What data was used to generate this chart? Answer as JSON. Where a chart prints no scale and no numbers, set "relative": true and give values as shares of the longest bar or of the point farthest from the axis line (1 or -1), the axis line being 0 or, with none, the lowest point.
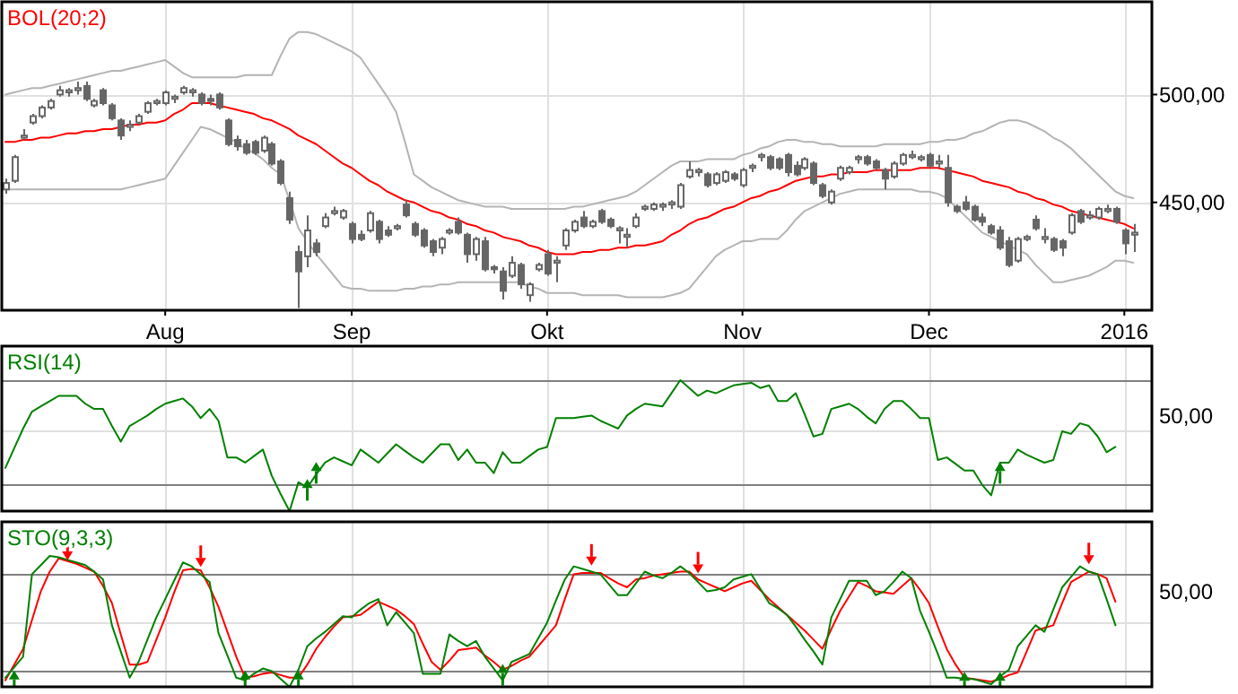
{
  "chart_data": [
    {
      "type": "candlestick",
      "title": "BOL(20;2)",
      "categories": [
        null,
        null,
        null,
        null,
        null,
        null,
        null,
        null,
        null,
        null,
        null,
        null,
        null,
        null,
        null,
        null,
        null,
        null,
        "Aug",
        null,
        null,
        null,
        null,
        null,
        null,
        null,
        null,
        null,
        null,
        null,
        null,
        null,
        null,
        null,
        null,
        null,
        null,
        null,
        null,
        "Sep",
        null,
        null,
        null,
        null,
        null,
        null,
        null,
        null,
        null,
        null,
        null,
        null,
        null,
        null,
        null,
        null,
        null,
        null,
        null,
        null,
        null,
        "Okt",
        null,
        null,
        null,
        null,
        null,
        null,
        null,
        null,
        null,
        null,
        null,
        null,
        null,
        null,
        null,
        null,
        null,
        null,
        null,
        null,
        null,
        "Nov",
        null,
        null,
        null,
        null,
        null,
        null,
        null,
        null,
        null,
        null,
        null,
        null,
        null,
        null,
        null,
        null,
        null,
        null,
        null,
        null,
        "Dec",
        null,
        null,
        null,
        null,
        null,
        null,
        null,
        null,
        null,
        null,
        null,
        null,
        null,
        null,
        null,
        null,
        null,
        null,
        null,
        null,
        null,
        "2016",
        null
      ],
      "ohlc": [
        [
          456,
          461,
          454,
          459
        ],
        [
          460,
          472,
          459,
          471
        ],
        [
          480,
          484,
          479,
          481
        ],
        [
          487,
          491,
          486,
          490
        ],
        [
          490,
          495,
          489,
          494
        ],
        [
          494,
          498,
          493,
          497
        ],
        [
          500,
          504,
          499,
          502
        ],
        [
          501,
          503,
          499,
          502
        ],
        [
          502,
          506,
          500,
          503
        ],
        [
          504,
          506,
          497,
          498
        ],
        [
          495,
          498,
          494,
          497
        ],
        [
          502,
          503,
          495,
          496
        ],
        [
          495,
          496,
          488,
          489
        ],
        [
          488,
          489,
          479,
          481
        ],
        [
          485,
          488,
          483,
          486
        ],
        [
          487,
          491,
          486,
          490
        ],
        [
          492,
          497,
          491,
          496
        ],
        [
          496,
          498,
          495,
          497
        ],
        [
          496,
          502,
          495,
          501
        ],
        [
          498,
          500,
          496,
          499
        ],
        [
          501,
          504,
          500,
          503
        ],
        [
          501,
          503,
          499,
          502
        ],
        [
          500,
          501,
          495,
          496
        ],
        [
          498,
          500,
          495,
          497
        ],
        [
          500,
          501,
          493,
          494
        ],
        [
          488,
          489,
          476,
          477
        ],
        [
          479,
          481,
          474,
          476
        ],
        [
          477,
          479,
          472,
          473
        ],
        [
          478,
          479,
          472,
          473
        ],
        [
          474,
          481,
          473,
          480
        ],
        [
          477,
          478,
          467,
          468
        ],
        [
          469,
          470,
          458,
          459
        ],
        [
          452,
          455,
          440,
          442
        ],
        [
          427,
          430,
          401,
          418
        ],
        [
          425,
          444,
          420,
          437
        ],
        [
          431,
          433,
          425,
          427
        ],
        [
          439,
          445,
          438,
          443
        ],
        [
          445,
          448,
          444,
          446
        ],
        [
          443,
          447,
          442,
          446
        ],
        [
          440,
          441,
          431,
          433
        ],
        [
          435,
          437,
          432,
          433
        ],
        [
          437,
          446,
          436,
          445
        ],
        [
          441,
          442,
          431,
          433
        ],
        [
          437,
          439,
          434,
          435
        ],
        [
          438,
          440,
          437,
          439
        ],
        [
          449,
          451,
          443,
          444
        ],
        [
          440,
          441,
          434,
          435
        ],
        [
          437,
          438,
          429,
          430
        ],
        [
          432,
          433,
          425,
          427
        ],
        [
          429,
          434,
          426,
          433
        ],
        [
          436,
          438,
          435,
          437
        ],
        [
          441,
          443,
          435,
          436
        ],
        [
          435,
          436,
          422,
          426
        ],
        [
          426,
          434,
          423,
          433
        ],
        [
          432,
          434,
          418,
          419
        ],
        [
          420,
          421,
          417,
          419
        ],
        [
          418,
          420,
          405,
          409
        ],
        [
          416,
          425,
          415,
          422
        ],
        [
          421,
          422,
          410,
          412
        ],
        [
          407,
          413,
          404,
          412
        ],
        [
          419,
          422,
          418,
          421
        ],
        [
          426,
          428,
          416,
          417
        ],
        [
          422,
          425,
          413,
          423
        ],
        [
          430,
          438,
          428,
          437
        ],
        [
          437,
          442,
          436,
          441
        ],
        [
          443,
          446,
          438,
          439
        ],
        [
          439,
          442,
          438,
          441
        ],
        [
          446,
          447,
          440,
          441
        ],
        [
          442,
          443,
          438,
          439
        ],
        [
          437,
          439,
          431,
          438
        ],
        [
          434,
          438,
          429,
          435
        ],
        [
          439,
          445,
          438,
          443
        ],
        [
          447,
          449,
          446,
          448
        ],
        [
          447,
          450,
          446,
          449
        ],
        [
          448,
          450,
          446,
          449
        ],
        [
          449,
          451,
          447,
          450
        ],
        [
          448,
          459,
          447,
          458
        ],
        [
          462,
          469,
          461,
          465
        ],
        [
          464,
          466,
          462,
          465
        ],
        [
          463,
          464,
          457,
          458
        ],
        [
          459,
          464,
          458,
          463
        ],
        [
          460,
          465,
          459,
          464
        ],
        [
          463,
          464,
          460,
          461
        ],
        [
          458,
          466,
          457,
          465
        ],
        [
          466,
          468,
          464,
          467
        ],
        [
          471,
          473,
          469,
          472
        ],
        [
          471,
          472,
          465,
          466
        ],
        [
          470,
          471,
          465,
          466
        ],
        [
          472,
          473,
          462,
          464
        ],
        [
          467,
          469,
          462,
          463
        ],
        [
          466,
          471,
          465,
          470
        ],
        [
          468,
          469,
          458,
          459
        ],
        [
          458,
          459,
          452,
          453
        ],
        [
          450,
          456,
          449,
          455
        ],
        [
          461,
          467,
          460,
          466
        ],
        [
          464,
          467,
          463,
          466
        ],
        [
          470,
          472,
          468,
          471
        ],
        [
          471,
          472,
          467,
          468
        ],
        [
          469,
          470,
          465,
          466
        ],
        [
          465,
          466,
          456,
          461
        ],
        [
          462,
          469,
          461,
          468
        ],
        [
          468,
          473,
          467,
          472
        ],
        [
          471,
          474,
          470,
          472
        ],
        [
          470,
          472,
          469,
          471
        ],
        [
          472,
          473,
          466,
          467
        ],
        [
          468,
          472,
          466,
          469
        ],
        [
          466,
          472,
          448,
          450
        ],
        [
          448,
          449,
          445,
          446
        ],
        [
          450,
          453,
          446,
          447
        ],
        [
          448,
          449,
          441,
          442
        ],
        [
          443,
          445,
          439,
          441
        ],
        [
          439,
          440,
          435,
          436
        ],
        [
          437,
          439,
          428,
          429
        ],
        [
          432,
          434,
          420,
          421
        ],
        [
          423,
          434,
          422,
          433
        ],
        [
          433,
          435,
          432,
          434
        ],
        [
          442,
          444,
          437,
          438
        ],
        [
          433,
          438,
          431,
          434
        ],
        [
          433,
          434,
          427,
          428
        ],
        [
          432,
          433,
          425,
          429
        ],
        [
          436,
          445,
          435,
          444
        ],
        [
          446,
          447,
          440,
          441
        ],
        [
          443,
          446,
          442,
          444
        ],
        [
          443,
          448,
          442,
          447
        ],
        [
          446,
          449,
          445,
          447
        ],
        [
          447,
          448,
          440,
          441
        ],
        [
          437,
          438,
          426,
          431
        ],
        [
          435,
          440,
          427,
          436
        ]
      ],
      "series": [
        {
          "type": "line",
          "color": "#b4b4b4",
          "values": [
            500,
            501,
            502,
            503,
            503,
            504,
            505,
            506,
            507,
            508,
            509,
            510,
            511,
            511,
            512,
            513,
            514,
            515,
            516,
            513,
            510,
            508,
            508,
            508,
            508,
            508,
            508,
            509,
            509,
            509,
            509,
            518,
            526,
            529,
            529,
            528,
            526,
            524,
            522,
            520,
            517,
            511,
            505,
            499,
            492,
            478,
            463,
            460,
            457,
            455,
            453,
            451,
            450,
            449,
            448,
            448,
            448,
            447,
            447,
            447,
            447,
            447,
            447,
            447,
            448,
            448,
            449,
            450,
            451,
            452,
            453,
            455,
            458,
            461,
            464,
            467,
            469,
            469,
            469,
            470,
            470,
            470,
            470,
            472,
            473,
            475,
            476,
            478,
            479,
            479,
            478,
            478,
            477,
            477,
            476,
            476,
            476,
            476,
            476,
            477,
            477,
            477,
            477,
            477,
            478,
            478,
            479,
            479,
            480,
            482,
            483,
            485,
            487,
            488,
            488,
            487,
            485,
            483,
            480,
            478,
            475,
            471,
            467,
            463,
            459,
            455,
            453,
            452
          ]
        },
        {
          "type": "line",
          "color": "#b4b4b4",
          "values": [
            456,
            456,
            456,
            456,
            456,
            456,
            456,
            456,
            456,
            456,
            456,
            456,
            456,
            456,
            457,
            458,
            459,
            460,
            461,
            467,
            473,
            479,
            485,
            484,
            482,
            480,
            478,
            475,
            473,
            470,
            466,
            463,
            451,
            438,
            432,
            426,
            421,
            416,
            411,
            410,
            410,
            409,
            409,
            409,
            409,
            410,
            410,
            411,
            411,
            412,
            412,
            413,
            413,
            413,
            413,
            413,
            413,
            413,
            413,
            411,
            410,
            408,
            408,
            408,
            408,
            407,
            407,
            407,
            407,
            407,
            406,
            406,
            406,
            406,
            406,
            407,
            408,
            410,
            415,
            420,
            425,
            428,
            430,
            432,
            432,
            433,
            433,
            433,
            437,
            442,
            446,
            448,
            450,
            452,
            454,
            455,
            456,
            456,
            456,
            456,
            456,
            456,
            456,
            455,
            455,
            454,
            452,
            448,
            444,
            440,
            436,
            434,
            432,
            430,
            428,
            426,
            421,
            417,
            413,
            413,
            414,
            415,
            416,
            418,
            420,
            423,
            423,
            422
          ]
        },
        {
          "type": "line",
          "color": "#ff0000",
          "values": [
            478,
            478,
            479,
            479,
            480,
            480,
            481,
            482,
            482,
            483,
            483,
            484,
            484,
            485,
            486,
            486,
            487,
            487,
            488,
            491,
            493,
            496,
            496,
            496,
            495,
            494,
            493,
            492,
            491,
            489,
            488,
            486,
            484,
            481,
            479,
            477,
            474,
            471,
            468,
            466,
            463,
            460,
            458,
            455,
            453,
            451,
            450,
            448,
            446,
            445,
            443,
            442,
            440,
            439,
            437,
            436,
            434,
            433,
            432,
            430,
            429,
            427,
            426,
            426,
            426,
            427,
            427,
            428,
            428,
            429,
            429,
            430,
            430,
            431,
            432,
            435,
            437,
            440,
            442,
            443,
            445,
            447,
            448,
            450,
            452,
            453,
            455,
            456,
            458,
            460,
            461,
            462,
            462,
            463,
            463,
            464,
            464,
            464,
            465,
            465,
            465,
            465,
            465,
            466,
            466,
            466,
            465,
            464,
            463,
            462,
            460,
            459,
            458,
            457,
            455,
            454,
            452,
            451,
            449,
            448,
            446,
            445,
            444,
            443,
            442,
            441,
            440,
            438
          ]
        }
      ],
      "ylim": [
        400,
        543
      ],
      "yticks": [
        {
          "value": 450,
          "label": "450,00"
        },
        {
          "value": 500,
          "label": "500,00"
        }
      ],
      "grid": true
    },
    {
      "type": "line",
      "title": "RSI(14)",
      "relative": true,
      "categories": [
        null,
        null,
        null,
        null,
        null,
        null,
        null,
        null,
        null,
        null,
        null,
        null,
        null,
        null,
        null,
        null,
        null,
        null,
        null,
        null,
        null,
        null,
        null,
        null,
        null,
        null,
        null,
        null,
        null,
        null,
        null,
        null,
        null,
        null,
        null,
        null,
        null,
        null,
        null,
        null,
        null,
        null,
        null,
        null,
        null,
        null,
        null,
        null,
        null,
        null,
        null,
        null,
        null,
        null,
        null,
        null,
        null,
        null,
        null,
        null,
        null,
        null,
        null,
        null,
        null,
        null,
        null,
        null,
        null,
        null,
        null,
        null,
        null,
        null,
        null,
        null,
        null,
        null,
        null,
        null,
        null,
        null,
        null,
        null,
        null,
        null,
        null,
        null,
        null,
        null,
        null,
        null,
        null,
        null,
        null,
        null,
        null,
        null,
        null,
        null,
        null,
        null,
        null,
        null,
        null,
        null,
        null,
        null,
        null,
        null,
        null,
        null,
        null,
        null,
        null,
        null,
        null,
        null,
        null,
        null,
        null,
        null,
        null,
        null,
        null,
        null,
        null,
        null
      ],
      "series": [
        {
          "color": "#008000",
          "values": [
            0.33,
            0.48,
            0.63,
            0.76,
            0.8,
            0.84,
            0.88,
            0.88,
            0.88,
            0.82,
            0.78,
            0.78,
            0.65,
            0.53,
            0.65,
            0.69,
            0.73,
            0.78,
            0.82,
            0.84,
            0.86,
            0.8,
            0.71,
            0.78,
            0.69,
            0.41,
            0.41,
            0.37,
            0.42,
            0.47,
            0.27,
            0.13,
            0,
            0.22,
            0.18,
            0.28,
            0.37,
            0.41,
            0.38,
            0.35,
            0.47,
            0.42,
            0.37,
            0.44,
            0.51,
            0.46,
            0.41,
            0.37,
            0.44,
            0.51,
            0.51,
            0.39,
            0.47,
            0.37,
            0.37,
            0.29,
            0.45,
            0.37,
            0.37,
            0.42,
            0.47,
            0.49,
            0.71,
            0.71,
            0.71,
            0.72,
            0.73,
            0.69,
            0.66,
            0.63,
            0.73,
            0.78,
            0.82,
            0.81,
            0.8,
            0.9,
            1,
            0.94,
            0.88,
            0.92,
            0.9,
            0.93,
            0.96,
            0.97,
            0.98,
            0.94,
            0.96,
            0.84,
            0.84,
            0.9,
            0.74,
            0.57,
            0.59,
            0.78,
            0.8,
            0.82,
            0.78,
            0.72,
            0.67,
            0.78,
            0.84,
            0.84,
            0.78,
            0.71,
            0.71,
            0.39,
            0.41,
            0.36,
            0.31,
            0.31,
            0.2,
            0.12,
            0.37,
            0.37,
            0.47,
            0.43,
            0.4,
            0.37,
            0.39,
            0.61,
            0.59,
            0.67,
            0.65,
            0.57,
            0.45,
            0.49,
            null,
            null
          ]
        },
        {
          "type": "scatter",
          "color": "#008000",
          "values": [
            null,
            null,
            null,
            null,
            null,
            null,
            null,
            null,
            null,
            null,
            null,
            null,
            null,
            null,
            null,
            null,
            null,
            null,
            null,
            null,
            null,
            null,
            null,
            null,
            null,
            null,
            null,
            null,
            null,
            null,
            null,
            null,
            null,
            null,
            0.21,
            0.34,
            null,
            null,
            null,
            null,
            null,
            null,
            null,
            null,
            null,
            null,
            null,
            null,
            null,
            null,
            null,
            null,
            null,
            null,
            null,
            null,
            null,
            null,
            null,
            null,
            null,
            null,
            null,
            null,
            null,
            null,
            null,
            null,
            null,
            null,
            null,
            null,
            null,
            null,
            null,
            null,
            null,
            null,
            null,
            null,
            null,
            null,
            null,
            null,
            null,
            null,
            null,
            null,
            null,
            null,
            null,
            null,
            null,
            null,
            null,
            null,
            null,
            null,
            null,
            null,
            null,
            null,
            null,
            null,
            null,
            null,
            null,
            null,
            null,
            null,
            null,
            null,
            0.34,
            null,
            null,
            null,
            null,
            null,
            null,
            null,
            null,
            null,
            null,
            null,
            null,
            null,
            null,
            null
          ]
        }
      ],
      "ref_lines": [
        {
          "axis": "y",
          "value": 0.2,
          "color": "#808080"
        },
        {
          "axis": "y",
          "value": 1,
          "color": "#808080"
        },
        {
          "axis": "y",
          "value": 0.61,
          "color": "#e0e0e0"
        }
      ],
      "annotations": [
        "50,00"
      ],
      "grid": "x"
    },
    {
      "type": "line",
      "title": "STO(9,3,3)",
      "relative": true,
      "categories": [
        null,
        null,
        null,
        null,
        null,
        null,
        null,
        null,
        null,
        null,
        null,
        null,
        null,
        null,
        null,
        null,
        null,
        null,
        null,
        null,
        null,
        null,
        null,
        null,
        null,
        null,
        null,
        null,
        null,
        null,
        null,
        null,
        null,
        null,
        null,
        null,
        null,
        null,
        null,
        null,
        null,
        null,
        null,
        null,
        null,
        null,
        null,
        null,
        null,
        null,
        null,
        null,
        null,
        null,
        null,
        null,
        null,
        null,
        null,
        null,
        null,
        null,
        null,
        null,
        null,
        null,
        null,
        null,
        null,
        null,
        null,
        null,
        null,
        null,
        null,
        null,
        null,
        null,
        null,
        null,
        null,
        null,
        null,
        null,
        null,
        null,
        null,
        null,
        null,
        null,
        null,
        null,
        null,
        null,
        null,
        null,
        null,
        null,
        null,
        null,
        null,
        null,
        null,
        null,
        null,
        null,
        null,
        null,
        null,
        null,
        null,
        null,
        null,
        null,
        null,
        null,
        null,
        null,
        null,
        null,
        null,
        null,
        null,
        null,
        null,
        null,
        null,
        null
      ],
      "series": [
        {
          "color": "#ff0000",
          "values": [
            0.05,
            0.17,
            0.29,
            0.51,
            0.73,
            0.88,
            0.98,
            0.96,
            0.94,
            0.91,
            0.88,
            0.77,
            0.64,
            0.4,
            0.17,
            0.17,
            0.19,
            0.36,
            0.53,
            0.72,
            0.89,
            0.9,
            0.89,
            0.76,
            0.61,
            0.42,
            0.23,
            0.07,
            0.08,
            0.1,
            0.11,
            0.09,
            0.07,
            0.07,
            0.17,
            0.29,
            0.38,
            0.46,
            0.53,
            0.54,
            0.55,
            0.6,
            0.65,
            0.62,
            0.59,
            0.54,
            0.48,
            0.33,
            0.19,
            0.13,
            0.2,
            0.28,
            0.29,
            0.3,
            0.24,
            0.19,
            0.13,
            0.16,
            0.2,
            0.23,
            0.31,
            0.39,
            0.47,
            0.67,
            0.86,
            0.87,
            0.87,
            0.87,
            0.83,
            0.79,
            0.76,
            0.82,
            0.83,
            0.85,
            0.86,
            0.87,
            0.88,
            0.88,
            0.82,
            0.79,
            0.76,
            0.73,
            0.76,
            0.79,
            0.81,
            0.74,
            0.67,
            0.61,
            0.55,
            0.49,
            0.43,
            0.36,
            0.29,
            0.44,
            0.58,
            0.69,
            0.8,
            0.77,
            0.73,
            0.72,
            0.71,
            0.77,
            0.83,
            0.74,
            0.64,
            0.46,
            0.29,
            0.17,
            0.07,
            0.06,
            0.05,
            0.04,
            0.06,
            0.09,
            0.11,
            0.27,
            0.43,
            0.45,
            0.47,
            0.64,
            0.8,
            0.84,
            0.88,
            0.86,
            0.83,
            0.65,
            null,
            null
          ]
        },
        {
          "color": "#008000",
          "values": [
            0.07,
            0.15,
            0.23,
            0.86,
            0.93,
            1,
            0.99,
            0.97,
            0.95,
            0.93,
            0.88,
            0.82,
            0.47,
            0.27,
            0.07,
            0.19,
            0.36,
            0.53,
            0.67,
            0.81,
            0.95,
            0.92,
            0.86,
            0.8,
            0.41,
            0.24,
            0.07,
            0.05,
            0.1,
            0.14,
            0.12,
            0.06,
            0,
            0.13,
            0.31,
            0.37,
            0.42,
            0.48,
            0.54,
            0.53,
            0.59,
            0.64,
            0.67,
            0.47,
            0.57,
            0.49,
            0.41,
            0.1,
            0.1,
            0.1,
            0.4,
            0.35,
            0.31,
            0.35,
            0.23,
            0.14,
            0.05,
            0.19,
            0.22,
            0.25,
            0.37,
            0.49,
            0.66,
            0.82,
            0.92,
            0.9,
            0.88,
            0.86,
            0.78,
            0.7,
            0.7,
            0.79,
            0.88,
            0.85,
            0.83,
            0.87,
            0.92,
            0.87,
            0.8,
            0.73,
            0.74,
            0.76,
            0.82,
            0.84,
            0.86,
            0.75,
            0.64,
            0.6,
            0.55,
            0.46,
            0.36,
            0.27,
            0.17,
            0.53,
            0.67,
            0.81,
            0.81,
            0.81,
            0.7,
            0.73,
            0.8,
            0.88,
            0.83,
            0.58,
            0.42,
            0.25,
            0.07,
            0.07,
            0.06,
            0.06,
            0.04,
            0.02,
            0.08,
            0.13,
            0.31,
            0.39,
            0.47,
            0.42,
            0.59,
            0.76,
            0.84,
            0.92,
            0.88,
            0.86,
            0.67,
            0.47,
            null,
            null
          ]
        },
        {
          "type": "scatter",
          "color": "#008000",
          "values": [
            null,
            0.09,
            null,
            null,
            null,
            null,
            null,
            null,
            null,
            null,
            null,
            null,
            null,
            null,
            null,
            null,
            null,
            null,
            null,
            null,
            null,
            null,
            null,
            null,
            null,
            null,
            null,
            0.09,
            null,
            null,
            null,
            null,
            null,
            0.09,
            null,
            null,
            null,
            null,
            null,
            null,
            null,
            null,
            null,
            null,
            null,
            null,
            null,
            null,
            null,
            null,
            null,
            null,
            null,
            null,
            null,
            null,
            0.14,
            null,
            null,
            null,
            null,
            null,
            null,
            null,
            null,
            null,
            null,
            null,
            null,
            null,
            null,
            null,
            null,
            null,
            null,
            null,
            null,
            null,
            null,
            null,
            null,
            null,
            null,
            null,
            null,
            null,
            null,
            null,
            null,
            null,
            null,
            null,
            null,
            null,
            null,
            null,
            null,
            null,
            null,
            null,
            null,
            null,
            null,
            null,
            null,
            null,
            null,
            null,
            0.08,
            null,
            null,
            null,
            0.08,
            null,
            null,
            null,
            null,
            null,
            null,
            null,
            null,
            null,
            null,
            null,
            null,
            null,
            null,
            null
          ]
        },
        {
          "type": "scatter",
          "color": "#ff0000",
          "values": [
            null,
            null,
            null,
            null,
            null,
            null,
            null,
            1,
            null,
            null,
            null,
            null,
            null,
            null,
            null,
            null,
            null,
            null,
            null,
            null,
            null,
            null,
            0.95,
            null,
            null,
            null,
            null,
            null,
            null,
            null,
            null,
            null,
            null,
            null,
            null,
            null,
            null,
            null,
            null,
            null,
            null,
            null,
            null,
            null,
            null,
            null,
            null,
            null,
            null,
            null,
            null,
            null,
            null,
            null,
            null,
            null,
            null,
            null,
            null,
            null,
            null,
            null,
            null,
            null,
            null,
            null,
            0.96,
            null,
            null,
            null,
            null,
            null,
            null,
            null,
            null,
            null,
            null,
            null,
            0.9,
            null,
            null,
            null,
            null,
            null,
            null,
            null,
            null,
            null,
            null,
            null,
            null,
            null,
            null,
            null,
            null,
            null,
            null,
            null,
            null,
            null,
            null,
            null,
            null,
            null,
            null,
            null,
            null,
            null,
            null,
            null,
            null,
            null,
            null,
            null,
            null,
            null,
            null,
            null,
            null,
            null,
            null,
            null,
            0.97,
            null,
            null,
            null,
            null,
            null
          ]
        }
      ],
      "ref_lines": [
        {
          "axis": "y",
          "value": 0.13,
          "color": "#808080"
        },
        {
          "axis": "y",
          "value": 0.86,
          "color": "#808080"
        },
        {
          "axis": "y",
          "value": 0.49,
          "color": "#e0e0e0"
        }
      ],
      "annotations": [
        "50,00"
      ],
      "grid": "x"
    }
  ]
}
